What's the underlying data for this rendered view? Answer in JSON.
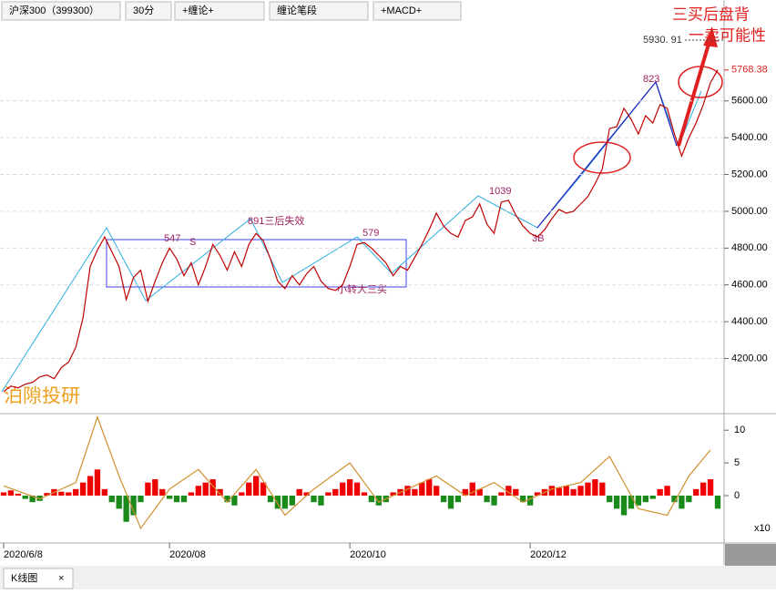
{
  "toolbar": {
    "items": [
      "沪深300（399300）",
      "30分",
      "+缠论+",
      "缠论笔段",
      "+MACD+"
    ]
  },
  "watermark": "泊隙投研",
  "annotations": {
    "notes": [
      "547",
      "S",
      "891三后失效",
      "579",
      "小转大三买",
      "1039",
      "3B",
      "823"
    ],
    "callout": [
      "三买后盘背",
      "一卖可能性"
    ]
  },
  "tab": {
    "label": "K线图",
    "close": "×"
  },
  "chart_data": [
    {
      "type": "line",
      "name": "price",
      "color": "#c00000",
      "xlim": [
        0,
        99
      ],
      "ylim": [
        3910,
        6020
      ],
      "yticks": [
        {
          "value": 4200,
          "label": "4200.00"
        },
        {
          "value": 4400,
          "label": "4400.00"
        },
        {
          "value": 4600,
          "label": "4600.00"
        },
        {
          "value": 4800,
          "label": "4800.00"
        },
        {
          "value": 5000,
          "label": "5000.00"
        },
        {
          "value": 5200,
          "label": "5200.00"
        },
        {
          "value": 5400,
          "label": "5400.00"
        },
        {
          "value": 5600,
          "label": "5600.00"
        }
      ],
      "xticks": [
        {
          "value": 0,
          "label": "2020/6/8"
        },
        {
          "value": 23,
          "label": "2020/08"
        },
        {
          "value": 48,
          "label": "2020/10"
        },
        {
          "value": 73,
          "label": "2020/12"
        }
      ],
      "high": {
        "value": 5930.91,
        "label": "5930. 91"
      },
      "last": {
        "value": 5768.38,
        "label": "5768.38",
        "color": "#e02020"
      },
      "grid": true,
      "values": [
        4020,
        4050,
        4040,
        4060,
        4070,
        4100,
        4110,
        4090,
        4150,
        4180,
        4260,
        4420,
        4700,
        4790,
        4860,
        4780,
        4700,
        4520,
        4640,
        4680,
        4510,
        4620,
        4720,
        4800,
        4740,
        4650,
        4720,
        4600,
        4700,
        4820,
        4760,
        4680,
        4780,
        4700,
        4820,
        4880,
        4840,
        4740,
        4620,
        4580,
        4650,
        4600,
        4660,
        4700,
        4620,
        4580,
        4570,
        4600,
        4700,
        4820,
        4830,
        4800,
        4760,
        4720,
        4650,
        4700,
        4680,
        4750,
        4820,
        4900,
        4990,
        4920,
        4880,
        4860,
        4950,
        4970,
        5040,
        4930,
        4880,
        5050,
        5060,
        4980,
        4920,
        4880,
        4860,
        4900,
        4960,
        5010,
        4990,
        5000,
        5040,
        5080,
        5150,
        5230,
        5450,
        5460,
        5560,
        5500,
        5420,
        5520,
        5480,
        5580,
        5560,
        5420,
        5300,
        5400,
        5480,
        5580,
        5700,
        5768.38
      ]
    },
    {
      "type": "bar",
      "name": "macd",
      "up_color": "#ee0000",
      "down_color": "#1a8a1a",
      "xlim": [
        0,
        99
      ],
      "ylim": [
        -7.1,
        12.4
      ],
      "yticks": [
        0,
        5,
        10
      ],
      "unit": "x10",
      "values": [
        0.5,
        0.8,
        0.3,
        -0.5,
        -1,
        -0.8,
        0.4,
        1,
        0.6,
        0.5,
        1,
        2,
        3,
        4,
        1,
        -1,
        -2,
        -4,
        -3,
        -1,
        2,
        2.5,
        1,
        -0.5,
        -1,
        -1,
        0.5,
        1.5,
        2,
        2.5,
        1,
        -1,
        -1.5,
        0.5,
        2,
        3,
        2,
        -1,
        -2,
        -2,
        -1.5,
        1,
        0.5,
        -1,
        -1.5,
        0.5,
        1,
        2,
        2.5,
        2,
        0.5,
        -1,
        -1.5,
        -1,
        0.5,
        1,
        1.5,
        1,
        2,
        2.5,
        1.5,
        -1,
        -2,
        -1,
        1,
        2,
        1,
        -1,
        -1.5,
        0.5,
        1.5,
        1,
        -1,
        -1.5,
        0.5,
        1,
        1.5,
        1.2,
        1.5,
        1,
        1.5,
        2,
        2.5,
        2,
        -1,
        -2,
        -3,
        -2,
        -1.5,
        -1,
        -0.5,
        1,
        1.5,
        -1,
        -2,
        -1,
        1,
        2,
        2.5,
        -2
      ],
      "line": {
        "color": "#d09030",
        "x": [
          0,
          5,
          10,
          13,
          16,
          19,
          23,
          27,
          31,
          35,
          39,
          43,
          48,
          52,
          56,
          60,
          64,
          68,
          72,
          76,
          80,
          84,
          88,
          92,
          95,
          98
        ],
        "values": [
          1.5,
          -0.5,
          2,
          12,
          3,
          -5,
          1,
          4,
          -1,
          4,
          -3,
          1,
          5,
          -1,
          1,
          3,
          0,
          2,
          -1,
          1,
          2,
          6,
          -2,
          -3,
          3,
          7
        ]
      }
    }
  ]
}
